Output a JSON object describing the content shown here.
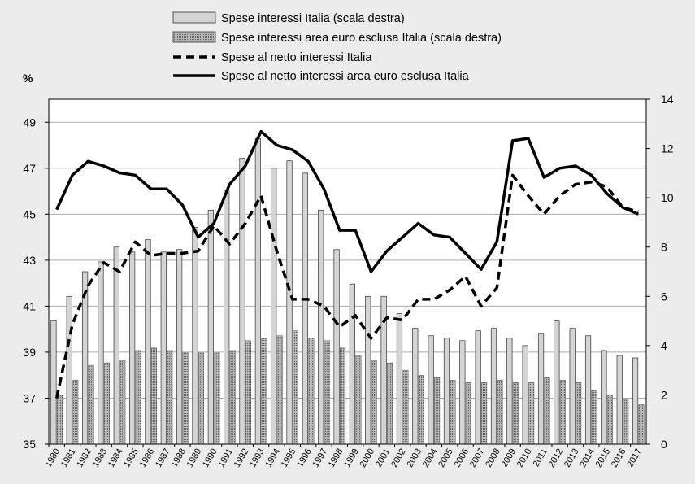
{
  "chart_data": {
    "type": "bar",
    "y_left_unit": "%",
    "y_left_range": [
      35,
      50
    ],
    "y_left_ticks": [
      35,
      37,
      39,
      41,
      43,
      45,
      47,
      49
    ],
    "y_right_range": [
      0,
      14
    ],
    "y_right_ticks": [
      0,
      2,
      4,
      6,
      8,
      10,
      12,
      14
    ],
    "grid": true,
    "legend_position": "top",
    "categories": [
      "1980",
      "1981",
      "1982",
      "1983",
      "1984",
      "1985",
      "1986",
      "1987",
      "1988",
      "1989",
      "1990",
      "1991",
      "1992",
      "1993",
      "1994",
      "1995",
      "1996",
      "1997",
      "1998",
      "1999",
      "2000",
      "2001",
      "2002",
      "2003",
      "2004",
      "2005",
      "2006",
      "2007",
      "2008",
      "2009",
      "2010",
      "2011",
      "2012",
      "2013",
      "2014",
      "2015",
      "2016",
      "2017"
    ],
    "series": [
      {
        "name": "Spese  interessi Italia (scala destra)",
        "type": "bar",
        "axis": "right",
        "color": "#d4d4d4",
        "values": [
          5.0,
          6.0,
          7.0,
          7.4,
          8.0,
          7.8,
          8.3,
          7.8,
          7.9,
          8.8,
          9.5,
          10.3,
          11.6,
          12.4,
          11.2,
          11.5,
          11.0,
          9.5,
          7.9,
          6.5,
          6.0,
          6.0,
          5.3,
          4.7,
          4.4,
          4.3,
          4.2,
          4.6,
          4.7,
          4.3,
          4.0,
          4.5,
          5.0,
          4.7,
          4.4,
          3.8,
          3.6,
          3.5
        ]
      },
      {
        "name": "Spese  interessi area euro esclusa Italia (scala destra)",
        "type": "bar",
        "axis": "right",
        "color": "#999999",
        "values": [
          2.0,
          2.6,
          3.2,
          3.3,
          3.4,
          3.8,
          3.9,
          3.8,
          3.7,
          3.7,
          3.7,
          3.8,
          4.2,
          4.3,
          4.4,
          4.6,
          4.3,
          4.2,
          3.9,
          3.6,
          3.4,
          3.3,
          3.0,
          2.8,
          2.7,
          2.6,
          2.5,
          2.5,
          2.6,
          2.5,
          2.5,
          2.7,
          2.6,
          2.5,
          2.2,
          2.0,
          1.8,
          1.6
        ]
      },
      {
        "name": "Spese al netto interessi Italia",
        "type": "line",
        "axis": "left",
        "dash": true,
        "color": "#000000",
        "values": [
          37.0,
          40.2,
          41.9,
          42.9,
          42.5,
          43.8,
          43.2,
          43.3,
          43.3,
          43.4,
          44.5,
          43.7,
          44.6,
          45.8,
          43.4,
          41.3,
          41.3,
          41.0,
          40.1,
          40.6,
          39.6,
          40.5,
          40.4,
          41.3,
          41.3,
          41.7,
          42.3,
          41.0,
          41.8,
          46.7,
          45.8,
          45.0,
          45.8,
          46.3,
          46.4,
          46.2,
          45.3,
          45.1
        ]
      },
      {
        "name": "Spese al netto interessi area euro esclusa Italia",
        "type": "line",
        "axis": "left",
        "dash": false,
        "color": "#000000",
        "values": [
          45.2,
          46.7,
          47.3,
          47.1,
          46.8,
          46.7,
          46.1,
          46.1,
          45.4,
          44.0,
          44.6,
          46.3,
          47.1,
          48.6,
          48.0,
          47.8,
          47.3,
          46.1,
          44.3,
          44.3,
          42.5,
          43.4,
          44.0,
          44.6,
          44.1,
          44.0,
          43.3,
          42.6,
          43.8,
          48.2,
          48.3,
          46.6,
          47.0,
          47.1,
          46.7,
          45.9,
          45.3,
          45.0
        ]
      }
    ]
  }
}
